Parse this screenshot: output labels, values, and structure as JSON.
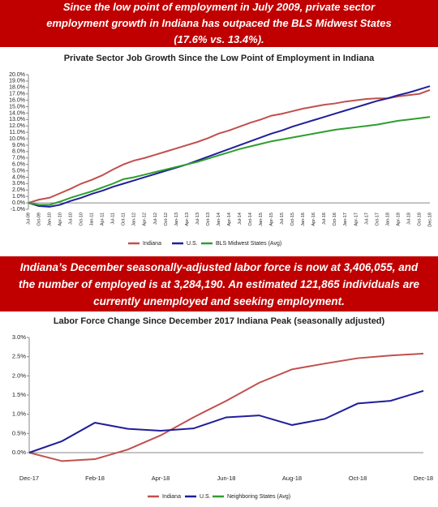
{
  "banners": [
    "Since the low point of employment in July 2009, private sector employment growth in Indiana has outpaced the BLS Midwest States (17.6% vs. 13.4%).",
    "Indiana’s December seasonally-adjusted labor force is now at 3,406,055, and the number of employed is at 3,284,190. An estimated 121,865 individuals are currently unemployed and seeking employment."
  ],
  "chart_data": [
    {
      "type": "line",
      "title": "Private Sector Job Growth Since the Low Point of Employment in Indiana",
      "categories": [
        "Jul-09",
        "Oct-09",
        "Jan-10",
        "Apr-10",
        "Jul-10",
        "Oct-10",
        "Jan-11",
        "Apr-11",
        "Jul-11",
        "Oct-11",
        "Jan-12",
        "Apr-12",
        "Jul-12",
        "Oct-12",
        "Jan-13",
        "Apr-13",
        "Jul-13",
        "Oct-13",
        "Jan-14",
        "Apr-14",
        "Jul-14",
        "Oct-14",
        "Jan-15",
        "Apr-15",
        "Jul-15",
        "Oct-15",
        "Jan-16",
        "Apr-16",
        "Jul-16",
        "Oct-16",
        "Jan-17",
        "Apr-17",
        "Jul-17",
        "Oct-17",
        "Jan-18",
        "Apr-18",
        "Jul-18",
        "Oct-18",
        "Dec-18"
      ],
      "series": [
        {
          "name": "Indiana",
          "color": "#c0504d",
          "values": [
            0,
            0.5,
            0.8,
            1.5,
            2.2,
            3.0,
            3.6,
            4.3,
            5.2,
            6.0,
            6.6,
            7.0,
            7.5,
            8.0,
            8.5,
            9.0,
            9.5,
            10.1,
            10.8,
            11.3,
            11.9,
            12.5,
            13.0,
            13.6,
            13.9,
            14.3,
            14.7,
            15.0,
            15.3,
            15.5,
            15.8,
            16.0,
            16.2,
            16.3,
            16.3,
            16.6,
            16.8,
            17.0,
            17.6
          ]
        },
        {
          "name": "U.S.",
          "color": "#1f1f9a",
          "values": [
            0,
            -0.5,
            -0.6,
            -0.3,
            0.3,
            0.8,
            1.4,
            1.9,
            2.5,
            3.0,
            3.5,
            4.0,
            4.5,
            5.0,
            5.5,
            6.0,
            6.6,
            7.2,
            7.8,
            8.4,
            9.0,
            9.6,
            10.2,
            10.8,
            11.3,
            11.9,
            12.4,
            12.9,
            13.4,
            13.9,
            14.4,
            14.9,
            15.4,
            15.9,
            16.3,
            16.8,
            17.2,
            17.7,
            18.2
          ]
        },
        {
          "name": "BLS Midwest States (Avg)",
          "color": "#2e9e2e",
          "values": [
            0,
            -0.3,
            -0.3,
            0.2,
            0.8,
            1.3,
            1.8,
            2.4,
            3.0,
            3.7,
            4.0,
            4.4,
            4.8,
            5.2,
            5.6,
            6.0,
            6.4,
            6.9,
            7.4,
            7.9,
            8.4,
            8.8,
            9.2,
            9.6,
            9.9,
            10.2,
            10.5,
            10.8,
            11.1,
            11.4,
            11.6,
            11.8,
            12.0,
            12.2,
            12.5,
            12.8,
            13.0,
            13.2,
            13.4
          ]
        }
      ],
      "ylim": [
        -1,
        20
      ],
      "yticks": [
        {
          "value": -1,
          "label": "-1.0%"
        },
        {
          "value": 0,
          "label": "0.0%"
        },
        {
          "value": 1,
          "label": "1.0%"
        },
        {
          "value": 2,
          "label": "2.0%"
        },
        {
          "value": 3,
          "label": "3.0%"
        },
        {
          "value": 4,
          "label": "4.0%"
        },
        {
          "value": 5,
          "label": "5.0%"
        },
        {
          "value": 6,
          "label": "6.0%"
        },
        {
          "value": 7,
          "label": "7.0%"
        },
        {
          "value": 8,
          "label": "8.0%"
        },
        {
          "value": 9,
          "label": "9.0%"
        },
        {
          "value": 10,
          "label": "10.0%"
        },
        {
          "value": 11,
          "label": "11.0%"
        },
        {
          "value": 12,
          "label": "12.0%"
        },
        {
          "value": 13,
          "label": "13.0%"
        },
        {
          "value": 14,
          "label": "14.0%"
        },
        {
          "value": 15,
          "label": "15.0%"
        },
        {
          "value": 16,
          "label": "16.0%"
        },
        {
          "value": 17,
          "label": "17.0%"
        },
        {
          "value": 18,
          "label": "18.0%"
        },
        {
          "value": 19,
          "label": "19.0%"
        },
        {
          "value": 20,
          "label": "20.0%"
        }
      ]
    },
    {
      "type": "line",
      "title": "Labor Force Change Since December 2017 Indiana Peak (seasonally adjusted)",
      "categories": [
        "Dec-17",
        null,
        "Feb-18",
        null,
        "Apr-18",
        null,
        "Jun-18",
        null,
        "Aug-18",
        null,
        "Oct-18",
        null,
        "Dec-18"
      ],
      "series": [
        {
          "name": "Indiana",
          "color": "#c0504d",
          "values": [
            0,
            -0.22,
            -0.17,
            0.08,
            0.45,
            0.92,
            1.35,
            1.82,
            2.17,
            2.32,
            2.46,
            2.53,
            2.58
          ]
        },
        {
          "name": "U.S.",
          "color": "#1f1f9a",
          "values": [
            0,
            0.3,
            0.78,
            0.62,
            0.57,
            0.63,
            0.92,
            0.97,
            0.72,
            0.88,
            1.28,
            1.35,
            1.61
          ]
        },
        {
          "name": "Neighboring States (Avg)",
          "color": "#2e9e2e",
          "values": [
            null,
            null,
            null,
            null,
            null,
            null,
            null,
            null,
            null,
            null,
            null,
            null,
            null
          ]
        }
      ],
      "ylim": [
        0,
        3
      ],
      "yticks": [
        {
          "value": 0,
          "label": "0.0%"
        },
        {
          "value": 0.5,
          "label": "0.5%"
        },
        {
          "value": 1,
          "label": "1.0%"
        },
        {
          "value": 1.5,
          "label": "1.5%"
        },
        {
          "value": 2,
          "label": "2.0%"
        },
        {
          "value": 2.5,
          "label": "2.5%"
        },
        {
          "value": 3,
          "label": "3.0%"
        }
      ]
    }
  ]
}
